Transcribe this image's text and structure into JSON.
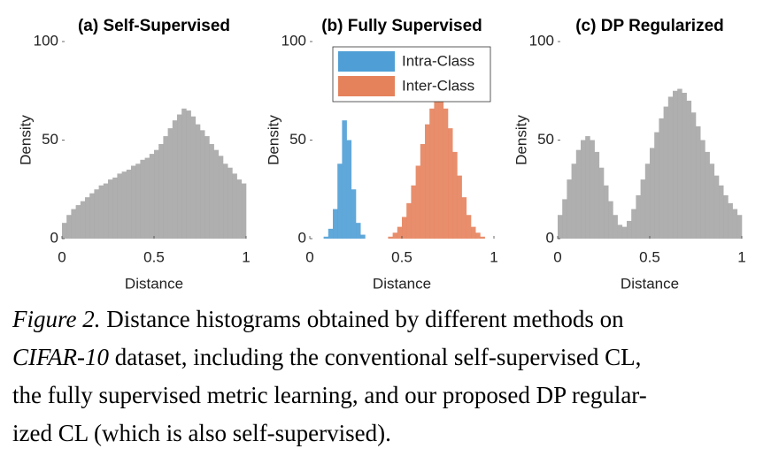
{
  "chart_data": [
    {
      "type": "histogram",
      "title": "(a) Self-Supervised",
      "xlabel": "Distance",
      "ylabel": "Density",
      "bins": [
        0,
        0.025,
        0.05,
        0.075,
        0.1,
        0.125,
        0.15,
        0.175,
        0.2,
        0.225,
        0.25,
        0.275,
        0.3,
        0.325,
        0.35,
        0.375,
        0.4,
        0.425,
        0.45,
        0.475,
        0.5,
        0.525,
        0.55,
        0.575,
        0.6,
        0.625,
        0.65,
        0.675,
        0.7,
        0.725,
        0.75,
        0.775,
        0.8,
        0.825,
        0.85,
        0.875,
        0.9,
        0.925,
        0.95,
        0.975,
        1
      ],
      "values": [
        8,
        12,
        15,
        17,
        19,
        21,
        23,
        25,
        27,
        28,
        30,
        31,
        33,
        34,
        35,
        37,
        38,
        40,
        41,
        43,
        45,
        48,
        52,
        56,
        60,
        63,
        66,
        65,
        62,
        58,
        55,
        52,
        48,
        45,
        42,
        38,
        36,
        33,
        30,
        28
      ],
      "color": "#a6a6a6",
      "xlim": [
        0,
        1
      ],
      "xticks": [
        0,
        0.5,
        1
      ],
      "ylim": [
        0,
        100
      ],
      "yticks": [
        0,
        50,
        100
      ]
    },
    {
      "type": "histogram",
      "title": "(b) Fully Supervised",
      "xlabel": "Distance",
      "ylabel": "Density",
      "bins": [
        0,
        0.025,
        0.05,
        0.075,
        0.1,
        0.125,
        0.15,
        0.175,
        0.2,
        0.225,
        0.25,
        0.275,
        0.3,
        0.325,
        0.35,
        0.375,
        0.4,
        0.425,
        0.45,
        0.475,
        0.5,
        0.525,
        0.55,
        0.575,
        0.6,
        0.625,
        0.65,
        0.675,
        0.7,
        0.725,
        0.75,
        0.775,
        0.8,
        0.825,
        0.85,
        0.875,
        0.9,
        0.925,
        0.95,
        0.975,
        1
      ],
      "series": [
        {
          "name": "Intra-Class",
          "color": "#4f9fd6",
          "values": [
            0,
            0,
            0,
            1,
            5,
            15,
            38,
            60,
            50,
            25,
            8,
            2,
            0,
            0,
            0,
            0,
            0,
            0,
            0,
            0,
            0,
            0,
            0,
            0,
            0,
            0,
            0,
            0,
            0,
            0,
            0,
            0,
            0,
            0,
            0,
            0,
            0,
            0,
            0,
            0
          ]
        },
        {
          "name": "Inter-Class",
          "color": "#e5825c",
          "values": [
            0,
            0,
            0,
            0,
            0,
            0,
            0,
            0,
            0,
            0,
            0,
            0,
            0,
            0,
            0,
            0,
            0,
            1,
            3,
            6,
            11,
            18,
            27,
            37,
            48,
            58,
            66,
            72,
            72,
            66,
            56,
            44,
            32,
            21,
            12,
            6,
            3,
            1,
            0,
            0
          ]
        }
      ],
      "legend": "upper right",
      "xlim": [
        0,
        1
      ],
      "xticks": [
        0,
        0.5,
        1
      ],
      "ylim": [
        0,
        100
      ],
      "yticks": [
        0,
        50,
        100
      ]
    },
    {
      "type": "histogram",
      "title": "(c) DP Regularized",
      "xlabel": "Distance",
      "ylabel": "Density",
      "bins": [
        0,
        0.025,
        0.05,
        0.075,
        0.1,
        0.125,
        0.15,
        0.175,
        0.2,
        0.225,
        0.25,
        0.275,
        0.3,
        0.325,
        0.35,
        0.375,
        0.4,
        0.425,
        0.45,
        0.475,
        0.5,
        0.525,
        0.55,
        0.575,
        0.6,
        0.625,
        0.65,
        0.675,
        0.7,
        0.725,
        0.75,
        0.775,
        0.8,
        0.825,
        0.85,
        0.875,
        0.9,
        0.925,
        0.95,
        0.975,
        1
      ],
      "values": [
        12,
        20,
        30,
        38,
        45,
        50,
        52,
        50,
        44,
        36,
        27,
        19,
        12,
        7,
        6,
        9,
        15,
        22,
        30,
        38,
        46,
        54,
        61,
        67,
        72,
        75,
        76,
        74,
        70,
        64,
        57,
        50,
        44,
        38,
        32,
        27,
        22,
        18,
        15,
        12
      ],
      "color": "#a6a6a6",
      "xlim": [
        0,
        1
      ],
      "xticks": [
        0,
        0.5,
        1
      ],
      "ylim": [
        0,
        100
      ],
      "yticks": [
        0,
        50,
        100
      ]
    }
  ],
  "caption": {
    "label": "Figure 2.",
    "dataset": "CIFAR-10",
    "lines": [
      " Distance histograms obtained by different methods on",
      " dataset, including the conventional self-supervised CL,",
      "the fully supervised metric learning, and our proposed DP regular-",
      "ized CL (which is also self-supervised)."
    ]
  }
}
